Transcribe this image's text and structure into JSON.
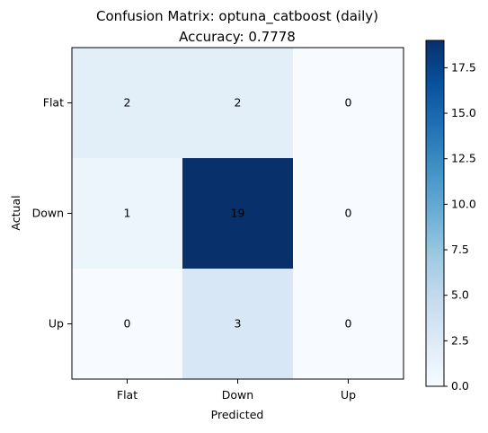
{
  "chart_data": {
    "type": "heatmap",
    "title": "Confusion Matrix: optuna_catboost (daily)",
    "subtitle": "Accuracy: 0.7778",
    "xlabel": "Predicted",
    "ylabel": "Actual",
    "x_categories": [
      "Flat",
      "Down",
      "Up"
    ],
    "y_categories": [
      "Flat",
      "Down",
      "Up"
    ],
    "matrix": [
      [
        2,
        2,
        0
      ],
      [
        1,
        19,
        0
      ],
      [
        0,
        3,
        0
      ]
    ],
    "colormap": "Blues",
    "colormap_light": "#f7fbff",
    "colormap_dark": "#08306b",
    "value_range": [
      0,
      19
    ],
    "colorbar_ticks": [
      "0.0",
      "2.5",
      "5.0",
      "7.5",
      "10.0",
      "12.5",
      "15.0",
      "17.5"
    ],
    "colorbar_tick_values": [
      0,
      2.5,
      5,
      7.5,
      10,
      12.5,
      15,
      17.5
    ],
    "grid": false,
    "colorbar_position": "right"
  }
}
